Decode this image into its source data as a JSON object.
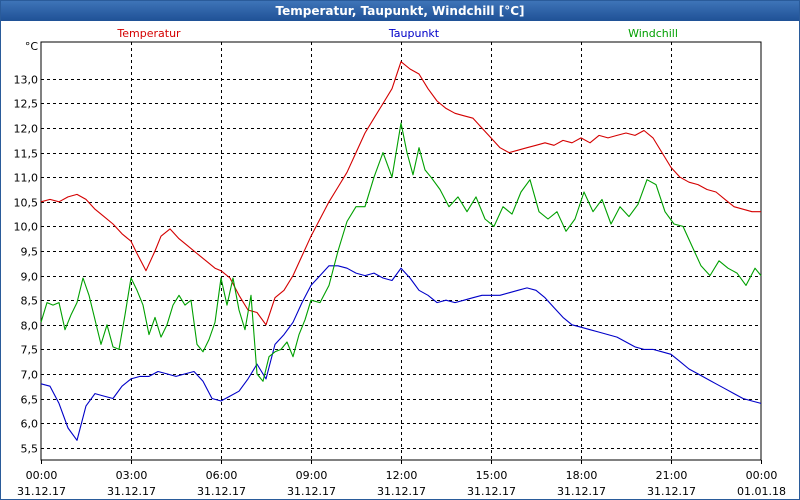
{
  "window_title": "Temperatur, Taupunkt, Windchill [°C]",
  "chart_data": {
    "type": "line",
    "title": "Temperatur, Taupunkt, Windchill [°C]",
    "ylabel": "°C",
    "xlabel": "",
    "ylim": [
      5.25,
      13.75
    ],
    "xlim": [
      0,
      24
    ],
    "y_ticks": [
      "5,5",
      "6,0",
      "6,5",
      "7,0",
      "7,5",
      "8,0",
      "8,5",
      "9,0",
      "9,5",
      "10,0",
      "10,5",
      "11,0",
      "11,5",
      "12,0",
      "12,5",
      "13,0"
    ],
    "y_tick_values": [
      5.5,
      6.0,
      6.5,
      7.0,
      7.5,
      8.0,
      8.5,
      9.0,
      9.5,
      10.0,
      10.5,
      11.0,
      11.5,
      12.0,
      12.5,
      13.0
    ],
    "x_ticks": [
      {
        "hour": 0,
        "time": "00:00",
        "date": "31.12.17"
      },
      {
        "hour": 3,
        "time": "03:00",
        "date": "31.12.17"
      },
      {
        "hour": 6,
        "time": "06:00",
        "date": "31.12.17"
      },
      {
        "hour": 9,
        "time": "09:00",
        "date": "31.12.17"
      },
      {
        "hour": 12,
        "time": "12:00",
        "date": "31.12.17"
      },
      {
        "hour": 15,
        "time": "15:00",
        "date": "31.12.17"
      },
      {
        "hour": 18,
        "time": "18:00",
        "date": "31.12.17"
      },
      {
        "hour": 21,
        "time": "21:00",
        "date": "31.12.17"
      },
      {
        "hour": 24,
        "time": "00:00",
        "date": "01.01.18"
      }
    ],
    "grid": true,
    "legend_position": "top",
    "series": [
      {
        "name": "Temperatur",
        "color": "#d40000",
        "x": [
          0,
          0.3,
          0.6,
          0.9,
          1.2,
          1.5,
          1.8,
          2.1,
          2.4,
          2.7,
          3.0,
          3.2,
          3.5,
          3.8,
          4.0,
          4.3,
          4.6,
          4.9,
          5.2,
          5.5,
          5.8,
          6.0,
          6.3,
          6.6,
          6.9,
          7.2,
          7.5,
          7.8,
          8.1,
          8.4,
          8.7,
          9.0,
          9.3,
          9.6,
          9.9,
          10.2,
          10.5,
          10.8,
          11.1,
          11.4,
          11.7,
          12.0,
          12.3,
          12.6,
          12.9,
          13.2,
          13.5,
          13.8,
          14.1,
          14.4,
          14.7,
          15.0,
          15.3,
          15.6,
          15.9,
          16.2,
          16.5,
          16.8,
          17.1,
          17.4,
          17.7,
          18.0,
          18.3,
          18.6,
          18.9,
          19.2,
          19.5,
          19.8,
          20.1,
          20.4,
          20.7,
          21.0,
          21.3,
          21.6,
          21.9,
          22.2,
          22.5,
          22.8,
          23.1,
          23.4,
          23.7,
          24.0
        ],
        "values": [
          10.5,
          10.55,
          10.5,
          10.6,
          10.65,
          10.55,
          10.35,
          10.2,
          10.05,
          9.85,
          9.7,
          9.45,
          9.1,
          9.5,
          9.8,
          9.95,
          9.75,
          9.6,
          9.45,
          9.3,
          9.15,
          9.1,
          8.95,
          8.6,
          8.3,
          8.25,
          8.0,
          8.55,
          8.7,
          9.0,
          9.4,
          9.8,
          10.15,
          10.5,
          10.8,
          11.1,
          11.5,
          11.9,
          12.2,
          12.5,
          12.8,
          13.35,
          13.2,
          13.1,
          12.8,
          12.55,
          12.4,
          12.3,
          12.25,
          12.2,
          12.0,
          11.8,
          11.6,
          11.5,
          11.55,
          11.6,
          11.65,
          11.7,
          11.65,
          11.75,
          11.7,
          11.8,
          11.7,
          11.85,
          11.8,
          11.85,
          11.9,
          11.85,
          11.95,
          11.8,
          11.5,
          11.2,
          11.0,
          10.9,
          10.85,
          10.75,
          10.7,
          10.55,
          10.4,
          10.35,
          10.3,
          10.3
        ]
      },
      {
        "name": "Taupunkt",
        "color": "#0000c8",
        "x": [
          0,
          0.3,
          0.6,
          0.9,
          1.2,
          1.5,
          1.8,
          2.1,
          2.4,
          2.7,
          3.0,
          3.3,
          3.6,
          3.9,
          4.2,
          4.5,
          4.8,
          5.1,
          5.4,
          5.7,
          6.0,
          6.3,
          6.6,
          6.9,
          7.2,
          7.5,
          7.8,
          8.1,
          8.4,
          8.7,
          9.0,
          9.3,
          9.6,
          9.9,
          10.2,
          10.5,
          10.8,
          11.1,
          11.4,
          11.7,
          12.0,
          12.3,
          12.6,
          12.9,
          13.2,
          13.5,
          13.8,
          14.1,
          14.4,
          14.7,
          15.0,
          15.3,
          15.6,
          15.9,
          16.2,
          16.5,
          16.8,
          17.1,
          17.4,
          17.7,
          18.0,
          18.3,
          18.6,
          18.9,
          19.2,
          19.5,
          19.8,
          20.1,
          20.4,
          20.7,
          21.0,
          21.3,
          21.6,
          21.9,
          22.2,
          22.5,
          22.8,
          23.1,
          23.4,
          23.7,
          24.0
        ],
        "values": [
          6.8,
          6.75,
          6.4,
          5.9,
          5.65,
          6.35,
          6.6,
          6.55,
          6.5,
          6.75,
          6.9,
          6.95,
          6.95,
          7.05,
          7.0,
          6.95,
          7.0,
          7.05,
          6.85,
          6.5,
          6.45,
          6.55,
          6.65,
          6.9,
          7.2,
          6.9,
          7.6,
          7.8,
          8.05,
          8.45,
          8.8,
          9.0,
          9.2,
          9.2,
          9.15,
          9.05,
          9.0,
          9.05,
          8.95,
          8.9,
          9.15,
          8.95,
          8.7,
          8.6,
          8.45,
          8.5,
          8.45,
          8.5,
          8.55,
          8.6,
          8.6,
          8.6,
          8.65,
          8.7,
          8.75,
          8.7,
          8.55,
          8.35,
          8.15,
          8.0,
          7.95,
          7.9,
          7.85,
          7.8,
          7.75,
          7.65,
          7.55,
          7.5,
          7.5,
          7.45,
          7.4,
          7.25,
          7.1,
          7.0,
          6.9,
          6.8,
          6.7,
          6.6,
          6.5,
          6.45,
          6.4
        ]
      },
      {
        "name": "Windchill",
        "color": "#00a000",
        "x": [
          0,
          0.2,
          0.4,
          0.6,
          0.8,
          1.0,
          1.2,
          1.4,
          1.6,
          1.8,
          2.0,
          2.2,
          2.4,
          2.6,
          2.8,
          3.0,
          3.2,
          3.4,
          3.6,
          3.8,
          4.0,
          4.2,
          4.4,
          4.6,
          4.8,
          5.0,
          5.2,
          5.4,
          5.6,
          5.8,
          6.0,
          6.2,
          6.4,
          6.6,
          6.8,
          7.0,
          7.2,
          7.4,
          7.6,
          7.8,
          8.0,
          8.2,
          8.4,
          8.6,
          8.8,
          9.0,
          9.3,
          9.6,
          9.9,
          10.2,
          10.5,
          10.8,
          11.1,
          11.4,
          11.7,
          12.0,
          12.2,
          12.4,
          12.6,
          12.8,
          13.0,
          13.3,
          13.6,
          13.9,
          14.2,
          14.5,
          14.8,
          15.1,
          15.4,
          15.7,
          16.0,
          16.3,
          16.6,
          16.9,
          17.2,
          17.5,
          17.8,
          18.1,
          18.4,
          18.7,
          19.0,
          19.3,
          19.6,
          19.9,
          20.2,
          20.5,
          20.8,
          21.1,
          21.4,
          21.7,
          22.0,
          22.3,
          22.6,
          22.9,
          23.2,
          23.5,
          23.8,
          24.0
        ],
        "values": [
          8.05,
          8.45,
          8.4,
          8.45,
          7.9,
          8.2,
          8.45,
          8.95,
          8.6,
          8.1,
          7.6,
          8.0,
          7.55,
          7.5,
          8.2,
          8.95,
          8.7,
          8.4,
          7.8,
          8.15,
          7.75,
          8.0,
          8.4,
          8.6,
          8.4,
          8.5,
          7.6,
          7.45,
          7.7,
          8.05,
          8.95,
          8.4,
          8.95,
          8.3,
          7.9,
          8.6,
          7.0,
          6.85,
          7.35,
          7.45,
          7.5,
          7.65,
          7.35,
          7.8,
          8.1,
          8.5,
          8.45,
          8.8,
          9.5,
          10.1,
          10.4,
          10.4,
          11.0,
          11.5,
          11.0,
          12.1,
          11.5,
          11.05,
          11.6,
          11.15,
          11.0,
          10.75,
          10.4,
          10.6,
          10.3,
          10.6,
          10.15,
          10.0,
          10.4,
          10.25,
          10.7,
          10.95,
          10.3,
          10.15,
          10.3,
          9.9,
          10.15,
          10.7,
          10.3,
          10.55,
          10.05,
          10.4,
          10.2,
          10.45,
          10.95,
          10.85,
          10.3,
          10.05,
          10.0,
          9.6,
          9.2,
          9.0,
          9.3,
          9.15,
          9.05,
          8.8,
          9.15,
          9.0
        ]
      }
    ]
  }
}
